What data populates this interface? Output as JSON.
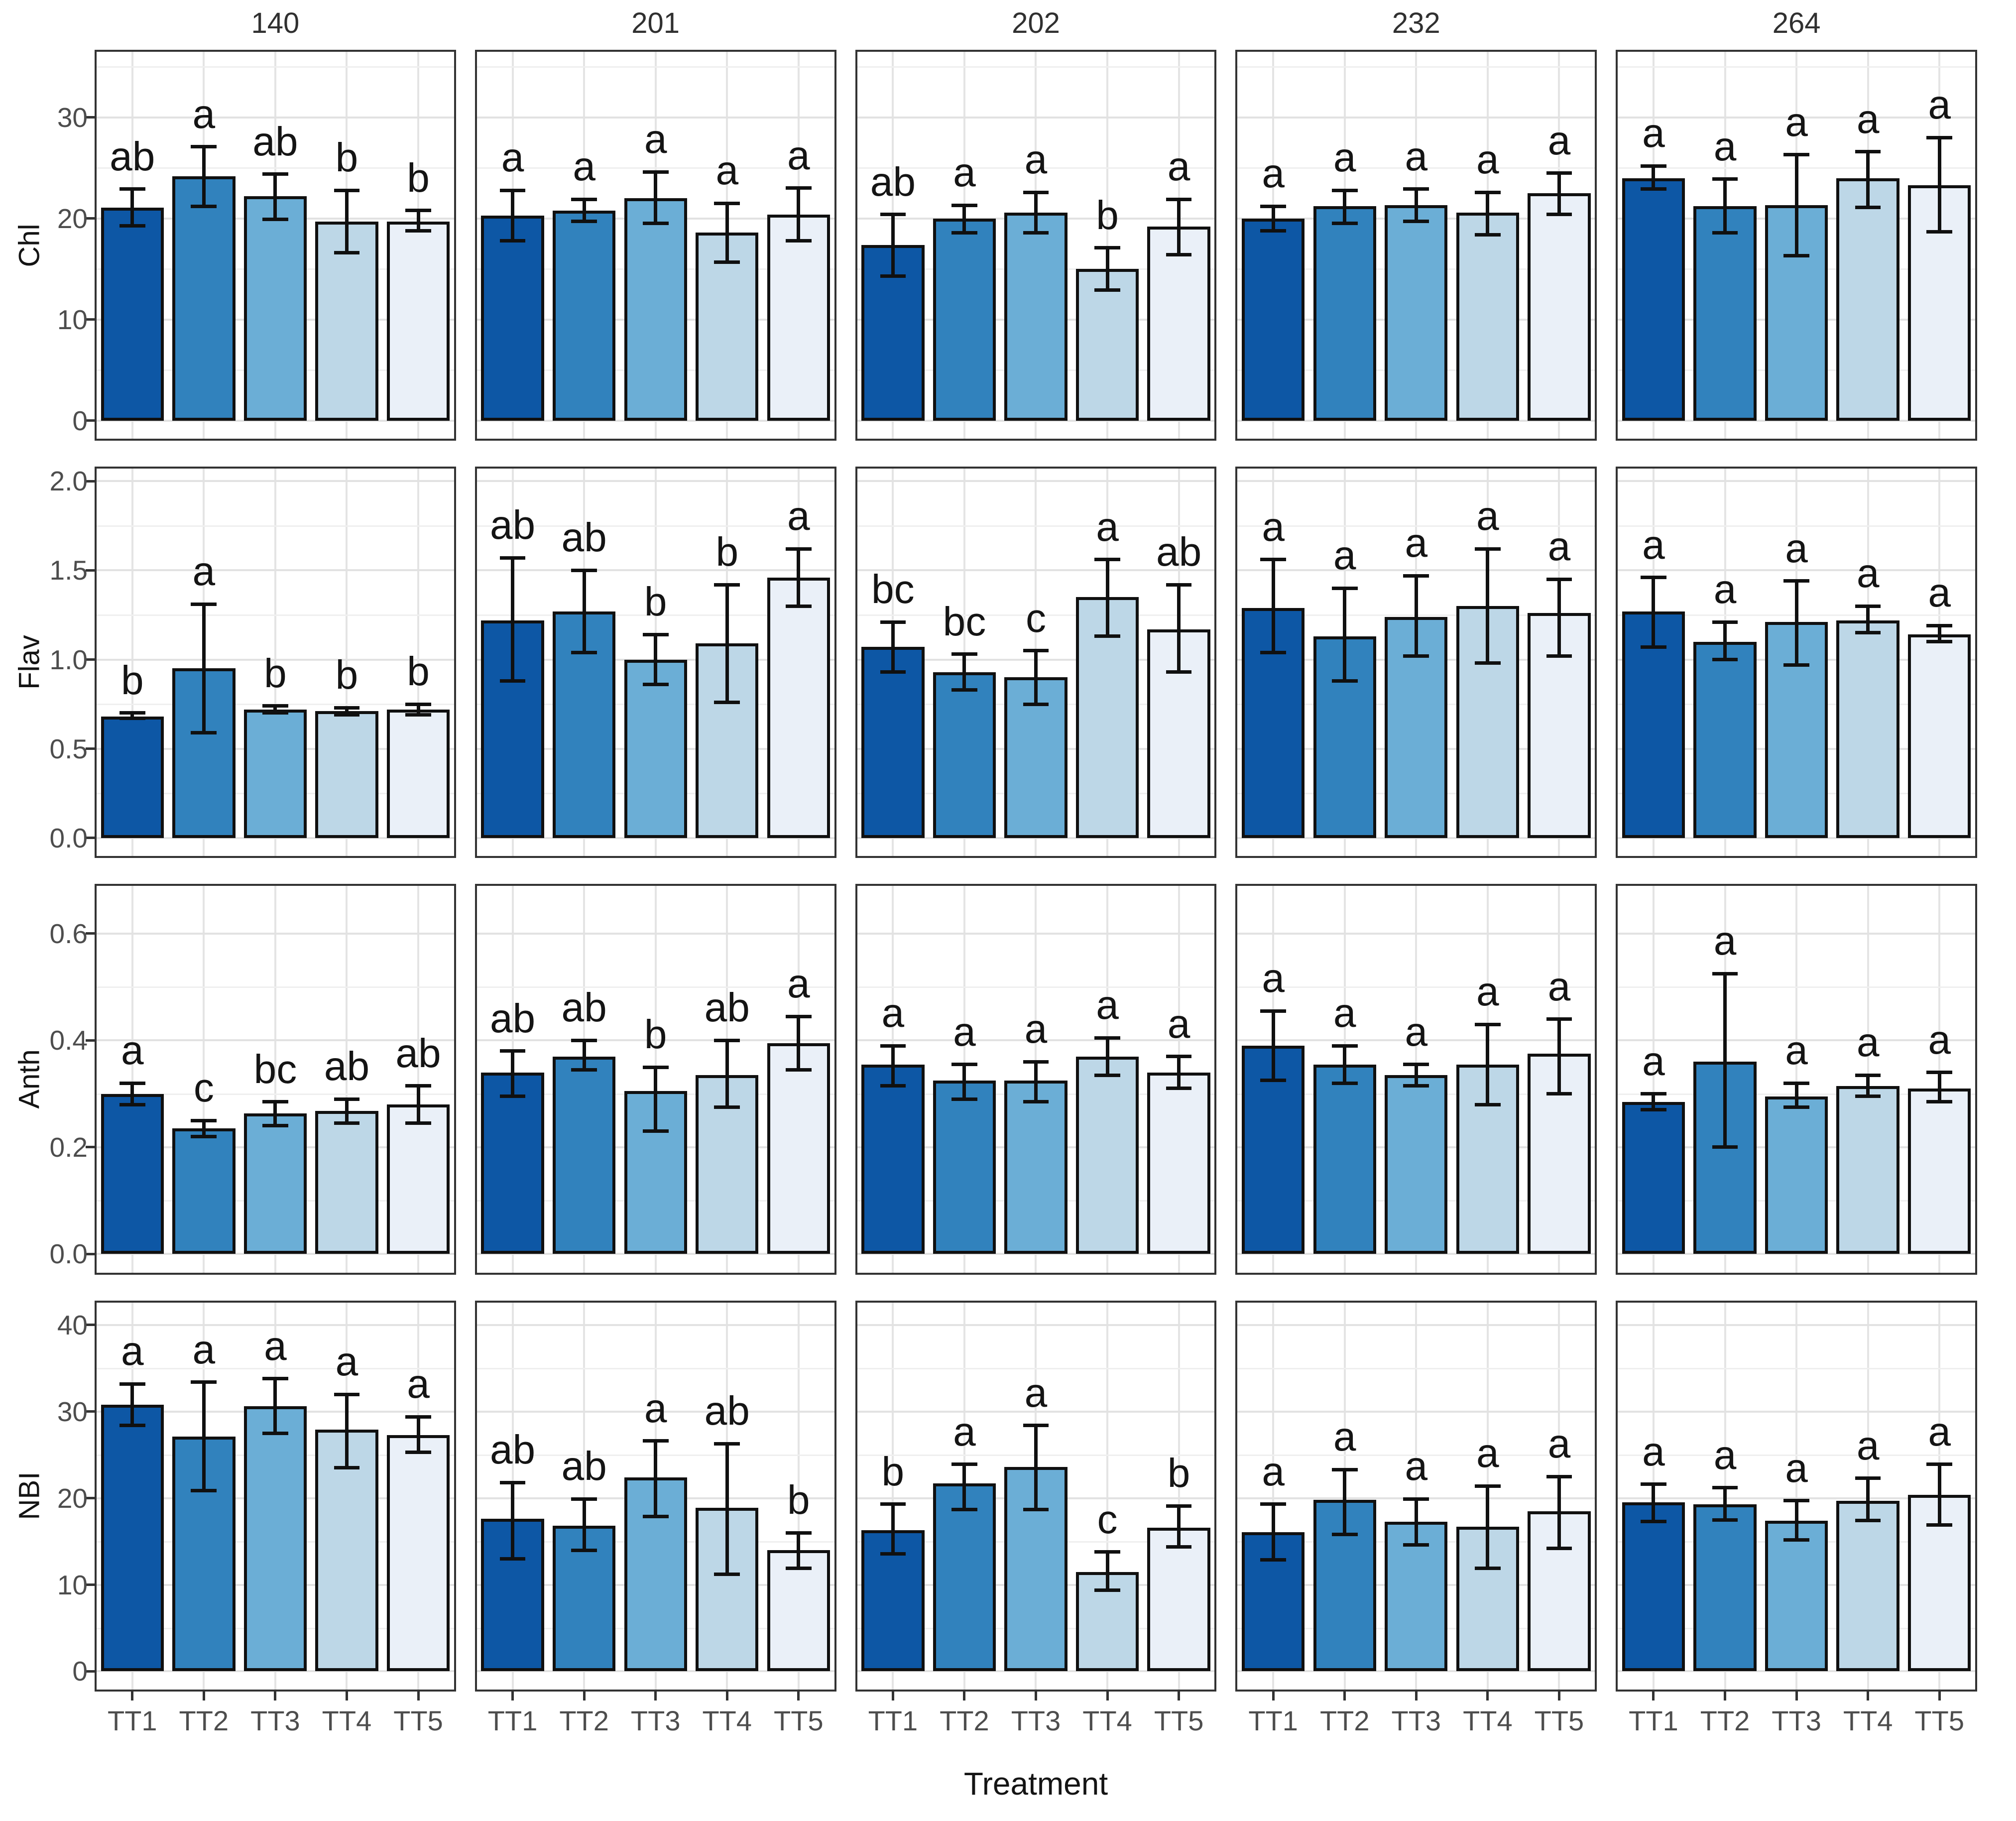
{
  "figure": {
    "x_axis_title": "Treatment",
    "treatments": [
      "TT1",
      "TT2",
      "TT3",
      "TT4",
      "TT5"
    ],
    "facet_columns": [
      "140",
      "201",
      "202",
      "232",
      "264"
    ],
    "facet_rows": [
      "Chl",
      "Flav",
      "Anth",
      "NBI"
    ],
    "bar_colors": [
      "#0d57a5",
      "#3182bd",
      "#6baed6",
      "#bdd7e7",
      "#eaf0f8"
    ],
    "bar_outline_color": "#101010",
    "error_bar_color": "#101010",
    "legend": "none"
  },
  "chart_data": [
    {
      "type": "bar",
      "measure": "Chl",
      "y_ticks": [
        0,
        10,
        20,
        30
      ],
      "y_tick_labels": [
        "0",
        "10",
        "20",
        "30"
      ],
      "y_minor": [
        5,
        15,
        25,
        35
      ],
      "y_domain": [
        -1.8,
        36.5
      ],
      "categories": [
        "TT1",
        "TT2",
        "TT3",
        "TT4",
        "TT5"
      ],
      "panels": [
        {
          "facet": "140",
          "values": [
            21.1,
            24.2,
            22.2,
            19.7,
            19.7
          ],
          "err_low": [
            19.3,
            21.2,
            19.9,
            16.6,
            18.8
          ],
          "err_high": [
            22.9,
            27.1,
            24.4,
            22.8,
            20.8
          ],
          "letters": [
            "ab",
            "a",
            "ab",
            "b",
            "b"
          ]
        },
        {
          "facet": "201",
          "values": [
            20.3,
            20.8,
            22.0,
            18.6,
            20.4
          ],
          "err_low": [
            17.8,
            19.7,
            19.5,
            15.7,
            17.8
          ],
          "err_high": [
            22.8,
            21.9,
            24.6,
            21.5,
            23.0
          ],
          "letters": [
            "a",
            "a",
            "a",
            "a",
            "a"
          ]
        },
        {
          "facet": "202",
          "values": [
            17.4,
            20.0,
            20.6,
            15.0,
            19.2
          ],
          "err_low": [
            14.3,
            18.6,
            18.6,
            12.9,
            16.4
          ],
          "err_high": [
            20.4,
            21.3,
            22.6,
            17.1,
            21.9
          ],
          "letters": [
            "ab",
            "a",
            "a",
            "b",
            "a"
          ]
        },
        {
          "facet": "232",
          "values": [
            20.0,
            21.2,
            21.3,
            20.6,
            22.5
          ],
          "err_low": [
            18.8,
            19.5,
            19.7,
            18.4,
            20.4
          ],
          "err_high": [
            21.2,
            22.8,
            22.9,
            22.6,
            24.5
          ],
          "letters": [
            "a",
            "a",
            "a",
            "a",
            "a"
          ]
        },
        {
          "facet": "264",
          "values": [
            24.0,
            21.2,
            21.3,
            24.0,
            23.3
          ],
          "err_low": [
            22.9,
            18.6,
            16.3,
            21.1,
            18.7
          ],
          "err_high": [
            25.2,
            23.9,
            26.3,
            26.6,
            28.0
          ],
          "letters": [
            "a",
            "a",
            "a",
            "a",
            "a"
          ]
        }
      ]
    },
    {
      "type": "bar",
      "measure": "Flav",
      "y_ticks": [
        0.0,
        0.5,
        1.0,
        1.5,
        2.0
      ],
      "y_tick_labels": [
        "0.0",
        "0.5",
        "1.0",
        "1.5",
        "2.0"
      ],
      "y_minor": [
        0.25,
        0.75,
        1.25,
        1.75
      ],
      "y_domain": [
        -0.1,
        2.07
      ],
      "categories": [
        "TT1",
        "TT2",
        "TT3",
        "TT4",
        "TT5"
      ],
      "panels": [
        {
          "facet": "140",
          "values": [
            0.68,
            0.95,
            0.72,
            0.71,
            0.72
          ],
          "err_low": [
            0.67,
            0.59,
            0.7,
            0.69,
            0.69
          ],
          "err_high": [
            0.7,
            1.31,
            0.74,
            0.73,
            0.75
          ],
          "letters": [
            "b",
            "a",
            "b",
            "b",
            "b"
          ]
        },
        {
          "facet": "201",
          "values": [
            1.22,
            1.27,
            1.0,
            1.09,
            1.46
          ],
          "err_low": [
            0.88,
            1.04,
            0.86,
            0.76,
            1.3
          ],
          "err_high": [
            1.57,
            1.5,
            1.14,
            1.42,
            1.62
          ],
          "letters": [
            "ab",
            "ab",
            "b",
            "b",
            "a"
          ]
        },
        {
          "facet": "202",
          "values": [
            1.07,
            0.93,
            0.9,
            1.35,
            1.17
          ],
          "err_low": [
            0.93,
            0.83,
            0.75,
            1.13,
            0.93
          ],
          "err_high": [
            1.21,
            1.03,
            1.05,
            1.56,
            1.42
          ],
          "letters": [
            "bc",
            "bc",
            "c",
            "a",
            "ab"
          ]
        },
        {
          "facet": "232",
          "values": [
            1.29,
            1.13,
            1.24,
            1.3,
            1.26
          ],
          "err_low": [
            1.04,
            0.88,
            1.02,
            0.98,
            1.02
          ],
          "err_high": [
            1.56,
            1.4,
            1.47,
            1.62,
            1.45
          ],
          "letters": [
            "a",
            "a",
            "a",
            "a",
            "a"
          ]
        },
        {
          "facet": "264",
          "values": [
            1.27,
            1.1,
            1.21,
            1.22,
            1.14
          ],
          "err_low": [
            1.07,
            1.0,
            0.97,
            1.15,
            1.1
          ],
          "err_high": [
            1.46,
            1.21,
            1.44,
            1.3,
            1.19
          ],
          "letters": [
            "a",
            "a",
            "a",
            "a",
            "a"
          ]
        }
      ]
    },
    {
      "type": "bar",
      "measure": "Anth",
      "y_ticks": [
        0.0,
        0.2,
        0.4,
        0.6
      ],
      "y_tick_labels": [
        "0.0",
        "0.2",
        "0.4",
        "0.6"
      ],
      "y_minor": [
        0.1,
        0.3,
        0.5
      ],
      "y_domain": [
        -0.035,
        0.69
      ],
      "categories": [
        "TT1",
        "TT2",
        "TT3",
        "TT4",
        "TT5"
      ],
      "panels": [
        {
          "facet": "140",
          "values": [
            0.3,
            0.235,
            0.263,
            0.268,
            0.28
          ],
          "err_low": [
            0.28,
            0.22,
            0.24,
            0.245,
            0.245
          ],
          "err_high": [
            0.32,
            0.25,
            0.285,
            0.29,
            0.315
          ],
          "letters": [
            "a",
            "c",
            "bc",
            "ab",
            "ab"
          ]
        },
        {
          "facet": "201",
          "values": [
            0.34,
            0.37,
            0.305,
            0.335,
            0.395
          ],
          "err_low": [
            0.295,
            0.345,
            0.23,
            0.275,
            0.345
          ],
          "err_high": [
            0.38,
            0.4,
            0.35,
            0.4,
            0.445
          ],
          "letters": [
            "ab",
            "ab",
            "b",
            "ab",
            "a"
          ]
        },
        {
          "facet": "202",
          "values": [
            0.355,
            0.325,
            0.325,
            0.37,
            0.34
          ],
          "err_low": [
            0.315,
            0.29,
            0.285,
            0.335,
            0.31
          ],
          "err_high": [
            0.39,
            0.355,
            0.36,
            0.405,
            0.37
          ],
          "letters": [
            "a",
            "a",
            "a",
            "a",
            "a"
          ]
        },
        {
          "facet": "232",
          "values": [
            0.39,
            0.355,
            0.335,
            0.355,
            0.375
          ],
          "err_low": [
            0.325,
            0.32,
            0.315,
            0.28,
            0.3
          ],
          "err_high": [
            0.455,
            0.39,
            0.355,
            0.43,
            0.44
          ],
          "letters": [
            "a",
            "a",
            "a",
            "a",
            "a"
          ]
        },
        {
          "facet": "264",
          "values": [
            0.285,
            0.36,
            0.295,
            0.315,
            0.31
          ],
          "err_low": [
            0.27,
            0.2,
            0.275,
            0.295,
            0.285
          ],
          "err_high": [
            0.3,
            0.525,
            0.32,
            0.335,
            0.34
          ],
          "letters": [
            "a",
            "a",
            "a",
            "a",
            "a"
          ]
        }
      ]
    },
    {
      "type": "bar",
      "measure": "NBI",
      "y_ticks": [
        0,
        10,
        20,
        30,
        40
      ],
      "y_tick_labels": [
        "0",
        "10",
        "20",
        "30",
        "40"
      ],
      "y_minor": [
        5,
        15,
        25,
        35
      ],
      "y_domain": [
        -2.1,
        42.6
      ],
      "categories": [
        "TT1",
        "TT2",
        "TT3",
        "TT4",
        "TT5"
      ],
      "panels": [
        {
          "facet": "140",
          "values": [
            30.8,
            27.1,
            30.6,
            27.9,
            27.3
          ],
          "err_low": [
            28.4,
            20.9,
            27.5,
            23.5,
            25.3
          ],
          "err_high": [
            33.2,
            33.4,
            33.8,
            32.0,
            29.4
          ],
          "letters": [
            "a",
            "a",
            "a",
            "a",
            "a"
          ]
        },
        {
          "facet": "201",
          "values": [
            17.6,
            16.8,
            22.4,
            18.9,
            14.0
          ],
          "err_low": [
            13.0,
            14.0,
            17.9,
            11.2,
            11.9
          ],
          "err_high": [
            21.8,
            19.9,
            26.6,
            26.3,
            16.0
          ],
          "letters": [
            "ab",
            "ab",
            "a",
            "ab",
            "b"
          ]
        },
        {
          "facet": "202",
          "values": [
            16.3,
            21.7,
            23.6,
            11.5,
            16.6
          ],
          "err_low": [
            13.6,
            18.7,
            18.7,
            9.4,
            14.4
          ],
          "err_high": [
            19.3,
            23.9,
            28.4,
            13.8,
            19.1
          ],
          "letters": [
            "b",
            "a",
            "a",
            "c",
            "b"
          ]
        },
        {
          "facet": "232",
          "values": [
            16.1,
            19.8,
            17.3,
            16.7,
            18.5
          ],
          "err_low": [
            12.9,
            15.8,
            14.6,
            11.9,
            14.2
          ],
          "err_high": [
            19.3,
            23.3,
            19.9,
            21.4,
            22.5
          ],
          "letters": [
            "a",
            "a",
            "a",
            "a",
            "a"
          ]
        },
        {
          "facet": "264",
          "values": [
            19.5,
            19.3,
            17.4,
            19.7,
            20.4
          ],
          "err_low": [
            17.3,
            17.5,
            15.2,
            17.4,
            16.9
          ],
          "err_high": [
            21.6,
            21.2,
            19.7,
            22.3,
            23.9
          ],
          "letters": [
            "a",
            "a",
            "a",
            "a",
            "a"
          ]
        }
      ]
    }
  ]
}
